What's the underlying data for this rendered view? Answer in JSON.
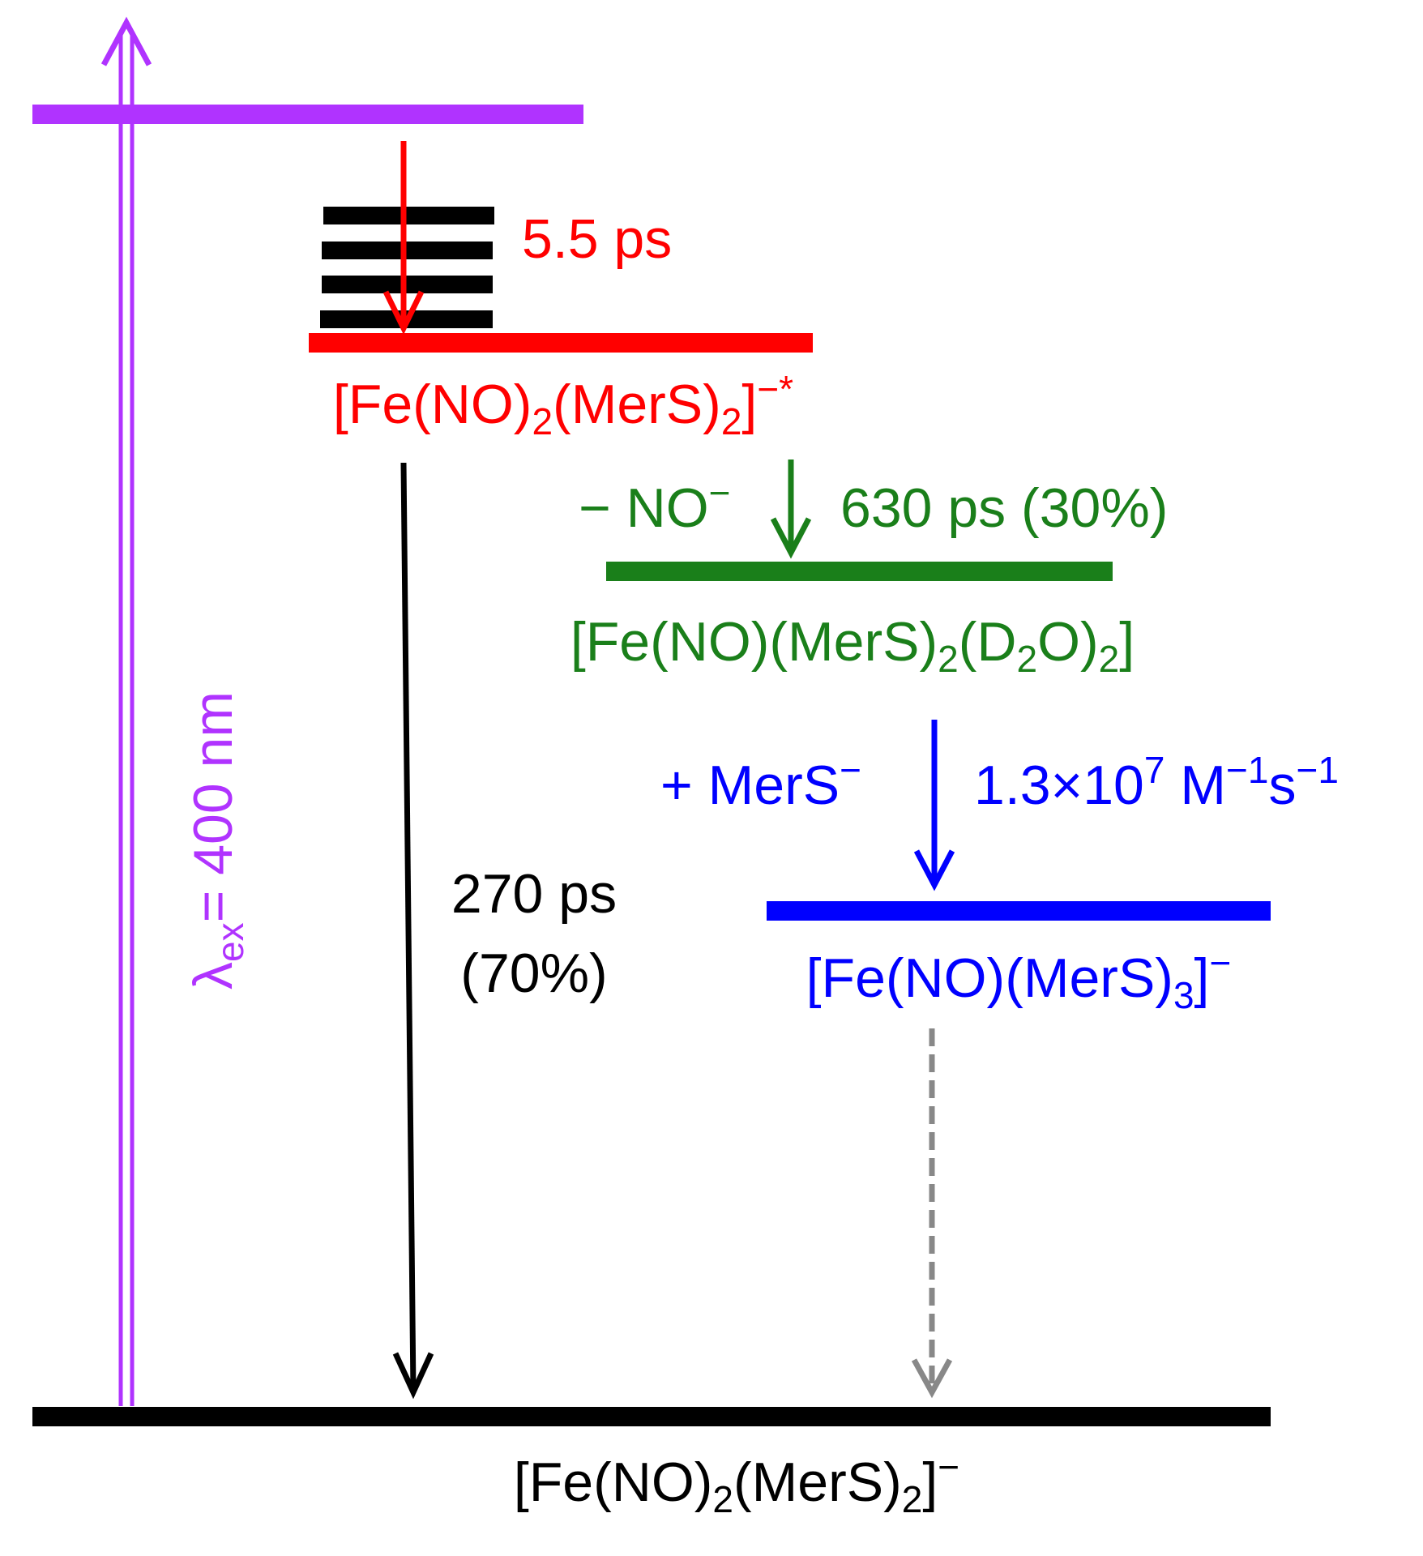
{
  "excitation": {
    "label": [
      "λ",
      "ex",
      "= 400 nm"
    ]
  },
  "steps": [
    {
      "time": "5.5 ps"
    },
    {
      "loss": [
        "− NO",
        "−"
      ],
      "time": "630 ps (30%)"
    },
    {
      "gain": [
        "+ MerS",
        "−"
      ],
      "rate": [
        "1.3×10",
        "7",
        " M",
        "−1",
        "s",
        "−1"
      ]
    },
    {
      "time": [
        "270 ps",
        "(70%)"
      ]
    }
  ],
  "states": [
    {
      "label": [
        "[Fe(NO)",
        "2",
        "(MerS)",
        "2",
        "]",
        "−*"
      ]
    },
    {
      "label": [
        "[Fe(NO)(MerS)",
        "2",
        "(D",
        "2",
        "O)",
        "2",
        "]"
      ]
    },
    {
      "label": [
        "[Fe(NO)(MerS)",
        "3",
        "]",
        "−"
      ]
    },
    {
      "label": [
        "[Fe(NO)",
        "2",
        "(MerS)",
        "2",
        "]",
        "−"
      ]
    }
  ]
}
